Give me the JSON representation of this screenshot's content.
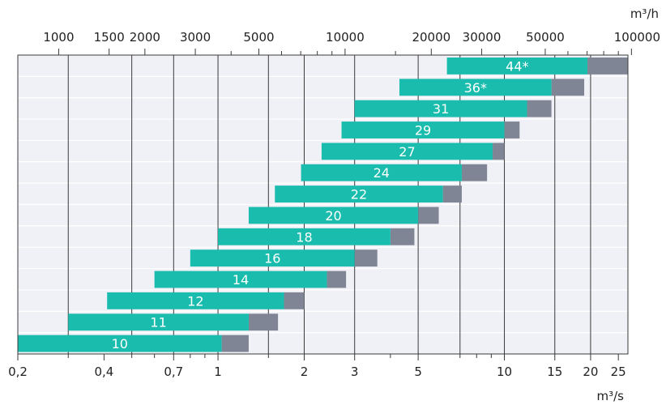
{
  "chart_data": {
    "type": "bar",
    "orientation": "horizontal",
    "x_scale": "log",
    "xlim": [
      0.2,
      27
    ],
    "grid": true,
    "bottom_axis": {
      "unit": "m³/s",
      "ticks": [
        {
          "value": 0.2,
          "label": "0,2"
        },
        {
          "value": 0.3,
          "label": ""
        },
        {
          "value": 0.4,
          "label": "0,4"
        },
        {
          "value": 0.5,
          "label": ""
        },
        {
          "value": 0.6,
          "label": ""
        },
        {
          "value": 0.7,
          "label": "0,7"
        },
        {
          "value": 0.8,
          "label": ""
        },
        {
          "value": 0.9,
          "label": ""
        },
        {
          "value": 1,
          "label": "1"
        },
        {
          "value": 1.5,
          "label": ""
        },
        {
          "value": 2,
          "label": "2"
        },
        {
          "value": 3,
          "label": "3"
        },
        {
          "value": 4,
          "label": ""
        },
        {
          "value": 5,
          "label": "5"
        },
        {
          "value": 7,
          "label": ""
        },
        {
          "value": 8,
          "label": ""
        },
        {
          "value": 9,
          "label": ""
        },
        {
          "value": 10,
          "label": "10"
        },
        {
          "value": 15,
          "label": "15"
        },
        {
          "value": 20,
          "label": "20"
        },
        {
          "value": 25,
          "label": "25"
        }
      ]
    },
    "top_axis": {
      "unit": "m³/h",
      "ticks": [
        {
          "value": 1000,
          "label": "1000"
        },
        {
          "value": 1500,
          "label": "1500"
        },
        {
          "value": 2000,
          "label": "2000"
        },
        {
          "value": 3000,
          "label": "3000"
        },
        {
          "value": 4000,
          "label": ""
        },
        {
          "value": 5000,
          "label": "5000"
        },
        {
          "value": 6000,
          "label": ""
        },
        {
          "value": 7000,
          "label": ""
        },
        {
          "value": 8000,
          "label": ""
        },
        {
          "value": 9000,
          "label": ""
        },
        {
          "value": 10000,
          "label": "10000"
        },
        {
          "value": 15000,
          "label": ""
        },
        {
          "value": 20000,
          "label": "20000"
        },
        {
          "value": 30000,
          "label": "30000"
        },
        {
          "value": 40000,
          "label": ""
        },
        {
          "value": 50000,
          "label": "50000"
        },
        {
          "value": 60000,
          "label": ""
        },
        {
          "value": 70000,
          "label": ""
        },
        {
          "value": 80000,
          "label": ""
        },
        {
          "value": 90000,
          "label": ""
        },
        {
          "value": 100000,
          "label": "100000"
        }
      ]
    },
    "gridlines": [
      0.3,
      0.5,
      0.7,
      1,
      1.5,
      2,
      3,
      5,
      7,
      10,
      15,
      20
    ],
    "series": [
      {
        "color": "#1abcad"
      },
      {
        "color": "#7f8594"
      }
    ],
    "bars": [
      {
        "label": "44*",
        "min": 6.3,
        "main_max": 19.5,
        "max": 28.0
      },
      {
        "label": "36*",
        "min": 4.3,
        "main_max": 14.6,
        "max": 19.0
      },
      {
        "label": "31",
        "min": 3.0,
        "main_max": 12.0,
        "max": 14.6
      },
      {
        "label": "29",
        "min": 2.7,
        "main_max": 10.0,
        "max": 11.3
      },
      {
        "label": "27",
        "min": 2.3,
        "main_max": 9.1,
        "max": 10.0
      },
      {
        "label": "24",
        "min": 1.95,
        "main_max": 7.1,
        "max": 8.7
      },
      {
        "label": "22",
        "min": 1.58,
        "main_max": 6.1,
        "max": 7.1
      },
      {
        "label": "20",
        "min": 1.28,
        "main_max": 5.0,
        "max": 5.9
      },
      {
        "label": "18",
        "min": 1.0,
        "main_max": 4.0,
        "max": 4.85
      },
      {
        "label": "16",
        "min": 0.8,
        "main_max": 3.0,
        "max": 3.6
      },
      {
        "label": "14",
        "min": 0.6,
        "main_max": 2.4,
        "max": 2.8
      },
      {
        "label": "12",
        "min": 0.41,
        "main_max": 1.7,
        "max": 2.0
      },
      {
        "label": "11",
        "min": 0.3,
        "main_max": 1.28,
        "max": 1.62
      },
      {
        "label": "10",
        "min": 0.2,
        "main_max": 1.03,
        "max": 1.28
      }
    ]
  }
}
